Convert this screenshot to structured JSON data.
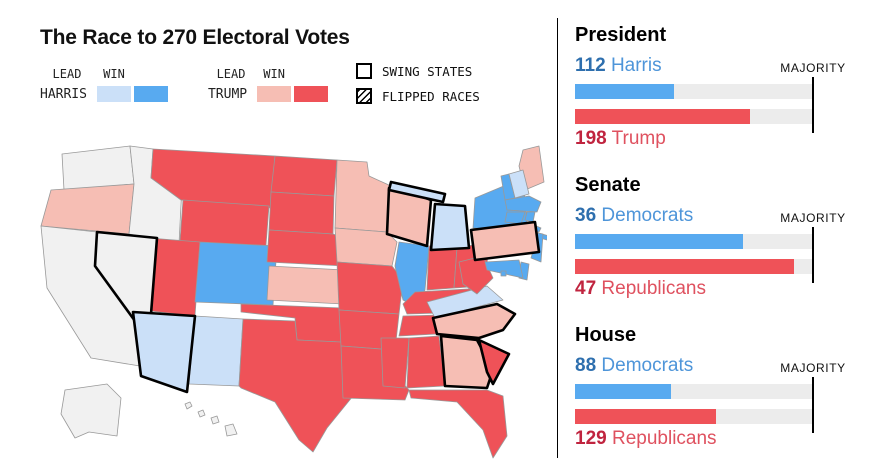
{
  "title": "The Race to 270 Electoral Votes",
  "legend": {
    "lead_label": "LEAD",
    "win_label": "WIN",
    "harris_label": "HARRIS",
    "trump_label": "TRUMP",
    "swing_label": "SWING STATES",
    "flipped_label": "FLIPPED RACES",
    "colors": {
      "harris_lead": "#cbe0f8",
      "harris_win": "#58aaf0",
      "trump_lead": "#f6beb4",
      "trump_win": "#ef5258",
      "none": "#f1f1f1"
    }
  },
  "chart_data": [
    {
      "type": "bar",
      "title": "President",
      "majority_label": "MAJORITY",
      "majority": 270,
      "series": [
        {
          "name": "Harris",
          "party": "dem",
          "value": 112
        },
        {
          "name": "Trump",
          "party": "rep",
          "value": 198
        }
      ]
    },
    {
      "type": "bar",
      "title": "Senate",
      "majority_label": "MAJORITY",
      "majority": 51,
      "series": [
        {
          "name": "Democrats",
          "party": "dem",
          "value": 36
        },
        {
          "name": "Republicans",
          "party": "rep",
          "value": 47
        }
      ]
    },
    {
      "type": "bar",
      "title": "House",
      "majority_label": "MAJORITY",
      "majority": 218,
      "series": [
        {
          "name": "Democrats",
          "party": "dem",
          "value": 88
        },
        {
          "name": "Republicans",
          "party": "rep",
          "value": 129
        }
      ]
    },
    {
      "type": "choropleth",
      "title": "Electoral college map by state",
      "swing_states": [
        "NV",
        "AZ",
        "WI",
        "MI",
        "PA",
        "GA",
        "NC"
      ],
      "flipped_races": [
        "SC"
      ],
      "states": {
        "WA": "none",
        "OR": "trump_lead",
        "CA": "none",
        "NV": "none",
        "ID": "none",
        "MT": "trump_win",
        "WY": "trump_win",
        "UT": "trump_win",
        "CO": "harris_win",
        "AZ": "harris_lead",
        "NM": "harris_lead",
        "ND": "trump_win",
        "SD": "trump_win",
        "NE": "trump_win",
        "KS": "trump_lead",
        "OK": "trump_win",
        "TX": "trump_win",
        "MN": "trump_lead",
        "IA": "trump_lead",
        "MO": "trump_win",
        "AR": "trump_win",
        "LA": "trump_win",
        "WI": "trump_lead",
        "IL": "harris_win",
        "MI": "harris_lead",
        "IN": "trump_win",
        "OH": "trump_win",
        "KY": "trump_win",
        "TN": "trump_win",
        "MS": "trump_win",
        "AL": "trump_win",
        "GA": "trump_lead",
        "FL": "trump_win",
        "SC": "trump_win",
        "NC": "trump_lead",
        "VA": "harris_lead",
        "WV": "trump_win",
        "PA": "trump_lead",
        "NY": "harris_win",
        "ME": "trump_lead",
        "NH": "harris_lead",
        "VT": "harris_win",
        "MA": "harris_win",
        "RI": "harris_win",
        "CT": "harris_win",
        "NJ": "harris_win",
        "DE": "harris_win",
        "MD": "harris_win",
        "DC": "harris_win",
        "AK": "none",
        "HI": "none"
      }
    }
  ]
}
